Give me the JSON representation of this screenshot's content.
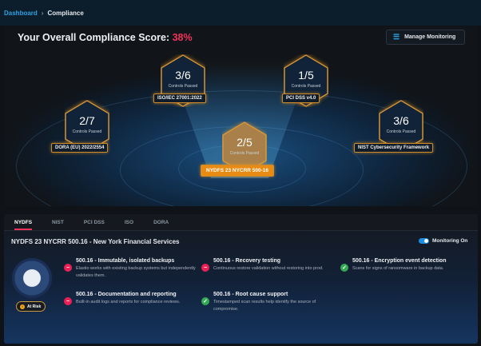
{
  "breadcrumb": {
    "parent": "Dashboard",
    "current": "Compliance"
  },
  "hero": {
    "score_label": "Your Overall Compliance Score:",
    "score_value": "38%",
    "manage_label": "Manage Monitoring",
    "frameworks": [
      {
        "value": "3/6",
        "caption": "Controls Passed",
        "label": "ISO/IEC 27001:2022"
      },
      {
        "value": "1/5",
        "caption": "Controls Passed",
        "label": "PCI DSS v4.0"
      },
      {
        "value": "2/7",
        "caption": "Controls Passed",
        "label": "DORA (EU) 2022/2554"
      },
      {
        "value": "3/6",
        "caption": "Controls Passed",
        "label": "NIST Cybersecurity Framework"
      },
      {
        "value": "2/5",
        "caption": "Controls Passed",
        "label": "NYDFS 23 NYCRR 500-16",
        "active": true
      }
    ]
  },
  "tabs": [
    "NYDFS",
    "NIST",
    "PCI DSS",
    "ISO",
    "DORA"
  ],
  "detail": {
    "title": "NYDFS 23 NYCRR 500.16 - New York Financial Services",
    "monitoring_label": "Monitoring On",
    "monitoring_on": true,
    "status": "At Risk",
    "items": [
      {
        "title": "500.16 - Immutable, isolated backups",
        "desc": "Elastio works with existing backup systems but independently validates them.",
        "status": "fail"
      },
      {
        "title": "500.16 - Recovery testing",
        "desc": "Continuous restore validation without restoring into prod.",
        "status": "fail"
      },
      {
        "title": "500.16 - Encryption event detection",
        "desc": "Scans for signs of ransomware in backup data.",
        "status": "pass"
      },
      {
        "title": "500.16 - Documentation and reporting",
        "desc": "Built-in audit logs and reports for compliance reviews.",
        "status": "fail"
      },
      {
        "title": "500.16 - Root cause support",
        "desc": "Timestamped scan results help identify the source of compromise.",
        "status": "pass"
      }
    ]
  },
  "colors": {
    "accent": "#f0335a",
    "active": "#e88b12",
    "pass": "#34a853",
    "fail": "#ea2156",
    "link": "#2ba3e3"
  }
}
